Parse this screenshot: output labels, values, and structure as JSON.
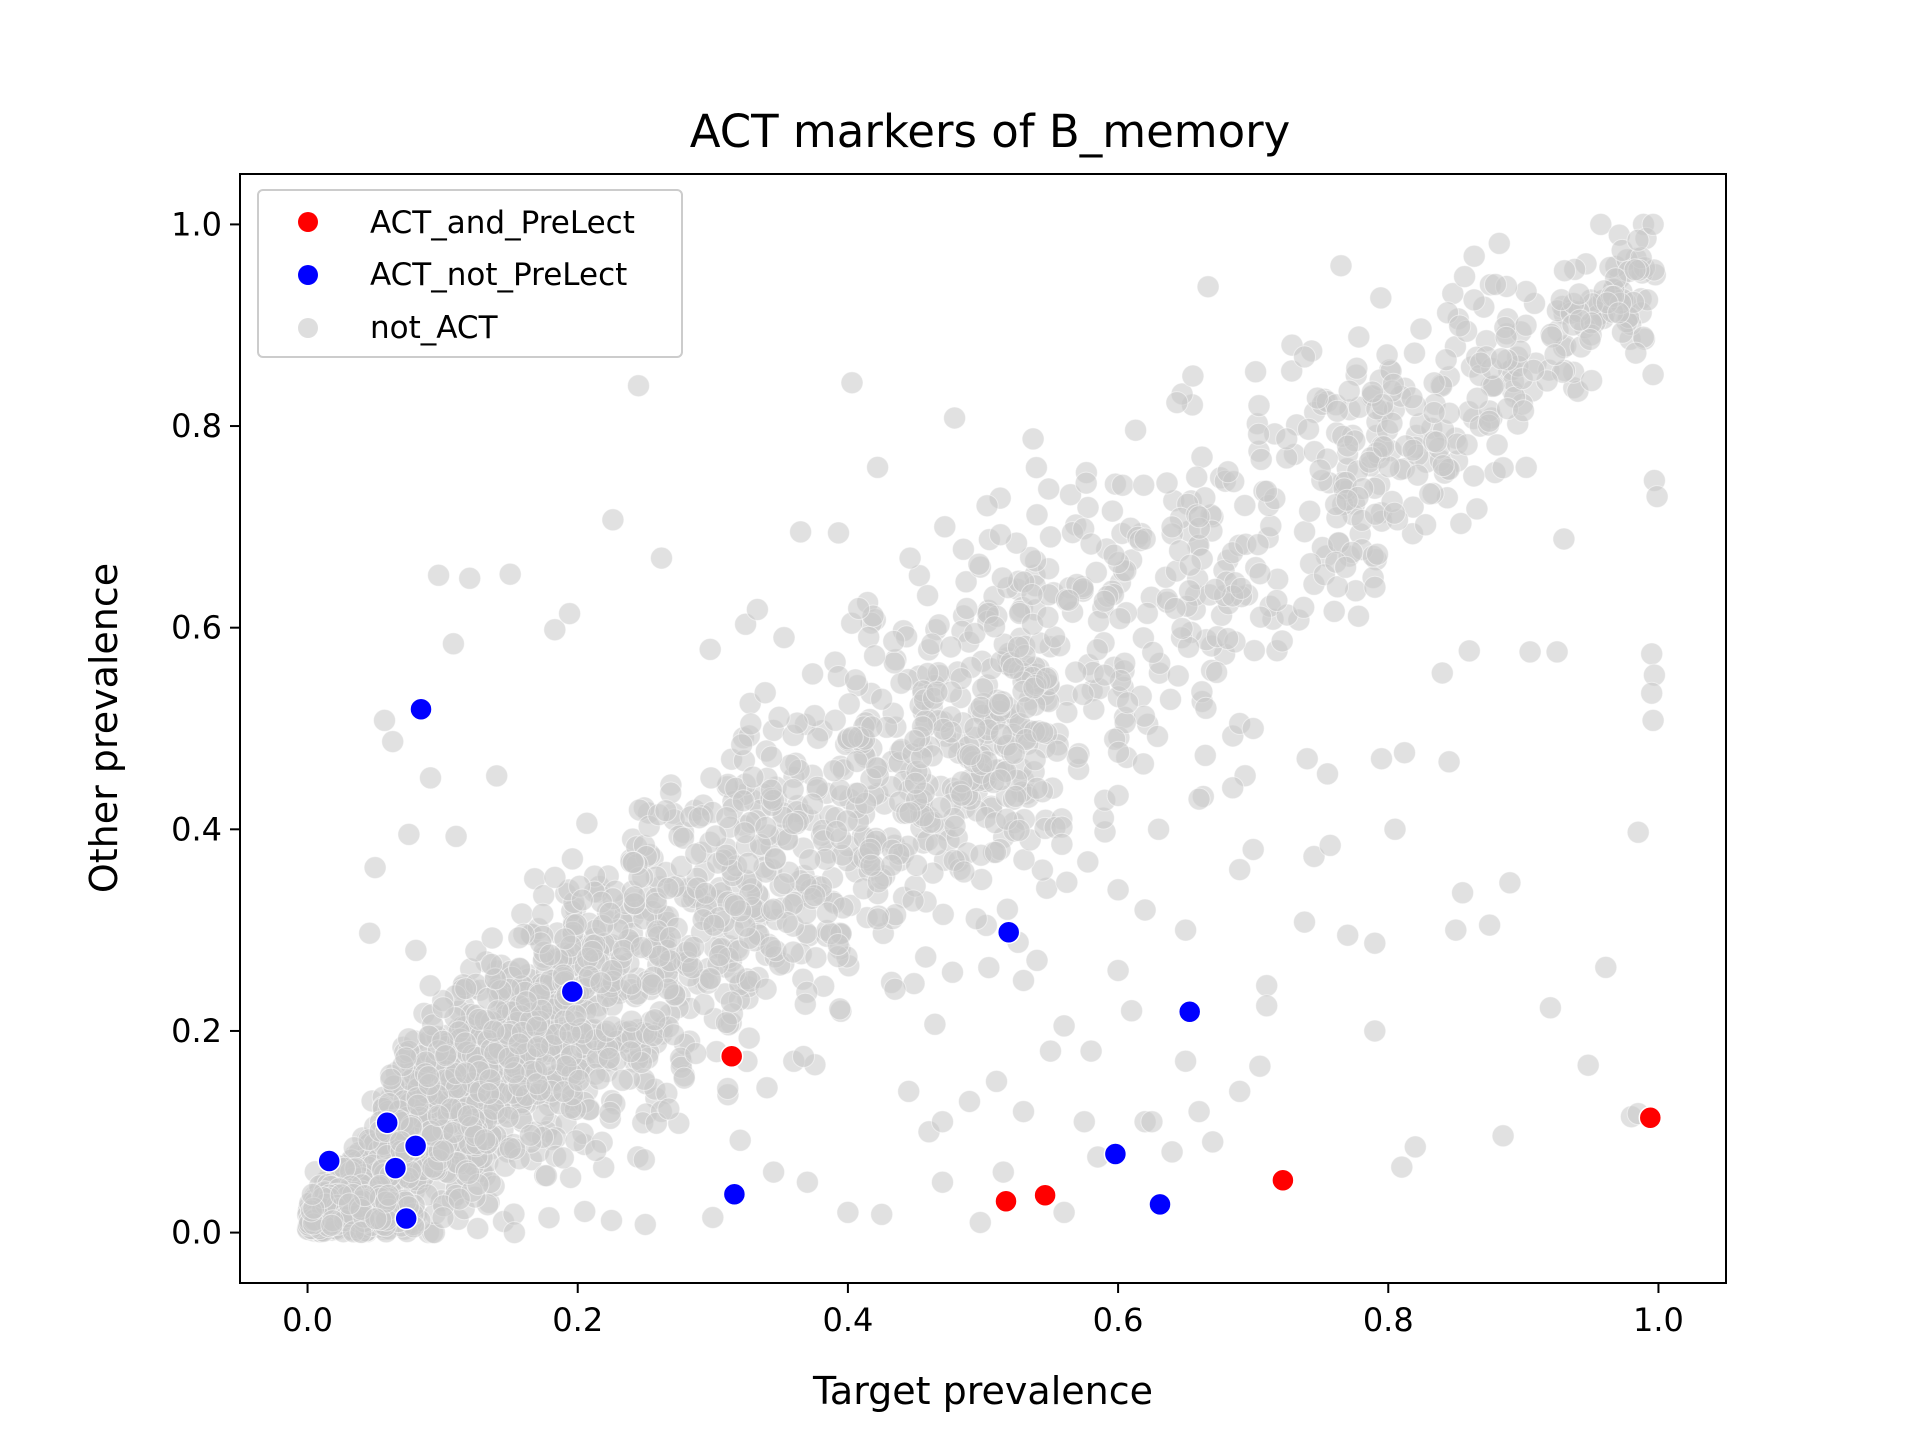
{
  "chart_data": {
    "type": "scatter",
    "title": "ACT markers of B_memory",
    "xlabel": "Target prevalence",
    "ylabel": "Other prevalence",
    "xlim": [
      -0.05,
      1.05
    ],
    "ylim": [
      -0.05,
      1.05
    ],
    "xticks": [
      0.0,
      0.2,
      0.4,
      0.6,
      0.8,
      1.0
    ],
    "yticks": [
      0.0,
      0.2,
      0.4,
      0.6,
      0.8,
      1.0
    ],
    "xtick_labels": [
      "0.0",
      "0.2",
      "0.4",
      "0.6",
      "0.8",
      "1.0"
    ],
    "ytick_labels": [
      "0.0",
      "0.2",
      "0.4",
      "0.6",
      "0.8",
      "1.0"
    ],
    "legend_position": "top-left",
    "series": [
      {
        "name": "ACT_and_PreLect",
        "color": "#ff0000",
        "points": [
          [
            0.314,
            0.175
          ],
          [
            0.994,
            0.114
          ],
          [
            0.722,
            0.052
          ],
          [
            0.546,
            0.037
          ],
          [
            0.517,
            0.031
          ]
        ]
      },
      {
        "name": "ACT_not_PreLect",
        "color": "#0000ff",
        "points": [
          [
            0.084,
            0.519
          ],
          [
            0.519,
            0.298
          ],
          [
            0.196,
            0.239
          ],
          [
            0.653,
            0.219
          ],
          [
            0.059,
            0.109
          ],
          [
            0.08,
            0.086
          ],
          [
            0.598,
            0.078
          ],
          [
            0.016,
            0.071
          ],
          [
            0.065,
            0.064
          ],
          [
            0.316,
            0.038
          ],
          [
            0.631,
            0.028
          ],
          [
            0.073,
            0.014
          ]
        ]
      },
      {
        "name": "not_ACT",
        "color": "#c8c8c8",
        "points": [
          [
            0.765,
            0.959
          ],
          [
            0.245,
            0.84
          ],
          [
            0.403,
            0.843
          ],
          [
            0.479,
            0.808
          ],
          [
            0.422,
            0.759
          ],
          [
            0.097,
            0.652
          ],
          [
            0.12,
            0.649
          ],
          [
            0.15,
            0.653
          ],
          [
            0.226,
            0.707
          ],
          [
            0.262,
            0.669
          ],
          [
            0.365,
            0.695
          ],
          [
            0.393,
            0.694
          ],
          [
            0.446,
            0.669
          ],
          [
            0.497,
            0.663
          ],
          [
            0.503,
            0.721
          ],
          [
            0.183,
            0.598
          ],
          [
            0.194,
            0.614
          ],
          [
            0.333,
            0.618
          ],
          [
            0.408,
            0.619
          ],
          [
            0.488,
            0.619
          ],
          [
            0.108,
            0.584
          ],
          [
            0.057,
            0.508
          ],
          [
            0.063,
            0.487
          ],
          [
            0.091,
            0.451
          ],
          [
            0.11,
            0.393
          ],
          [
            0.14,
            0.453
          ],
          [
            0.075,
            0.395
          ],
          [
            0.05,
            0.362
          ],
          [
            0.046,
            0.297
          ],
          [
            0.62,
            0.11
          ],
          [
            0.64,
            0.08
          ],
          [
            0.585,
            0.075
          ],
          [
            0.575,
            0.11
          ],
          [
            0.56,
            0.02
          ],
          [
            0.515,
            0.06
          ],
          [
            0.498,
            0.01
          ],
          [
            0.47,
            0.05
          ],
          [
            0.46,
            0.1
          ],
          [
            0.445,
            0.14
          ],
          [
            0.425,
            0.018
          ],
          [
            0.4,
            0.02
          ],
          [
            0.37,
            0.05
          ],
          [
            0.345,
            0.06
          ],
          [
            0.3,
            0.015
          ],
          [
            0.25,
            0.008
          ],
          [
            0.225,
            0.012
          ],
          [
            0.71,
            0.245
          ],
          [
            0.705,
            0.165
          ],
          [
            0.71,
            0.225
          ],
          [
            0.738,
            0.308
          ],
          [
            0.745,
            0.373
          ],
          [
            0.757,
            0.384
          ],
          [
            0.77,
            0.295
          ],
          [
            0.79,
            0.287
          ],
          [
            0.805,
            0.4
          ],
          [
            0.812,
            0.476
          ],
          [
            0.845,
            0.467
          ],
          [
            0.85,
            0.3
          ],
          [
            0.855,
            0.337
          ],
          [
            0.875,
            0.305
          ],
          [
            0.89,
            0.347
          ],
          [
            0.885,
            0.096
          ],
          [
            0.92,
            0.223
          ],
          [
            0.948,
            0.166
          ],
          [
            0.961,
            0.263
          ],
          [
            0.985,
            0.397
          ],
          [
            0.79,
            0.2
          ],
          [
            0.82,
            0.085
          ],
          [
            0.81,
            0.065
          ],
          [
            0.84,
            0.555
          ],
          [
            0.86,
            0.577
          ],
          [
            0.905,
            0.576
          ],
          [
            0.925,
            0.576
          ],
          [
            0.995,
            0.574
          ],
          [
            0.997,
            0.553
          ],
          [
            0.995,
            0.535
          ],
          [
            0.996,
            0.508
          ],
          [
            0.997,
            0.746
          ],
          [
            0.999,
            0.73
          ],
          [
            0.996,
            0.851
          ],
          [
            0.93,
            0.688
          ],
          [
            0.98,
            0.115
          ],
          [
            0.985,
            0.118
          ],
          [
            0.74,
            0.47
          ],
          [
            0.755,
            0.455
          ],
          [
            0.795,
            0.47
          ],
          [
            0.69,
            0.505
          ],
          [
            0.7,
            0.5
          ],
          [
            0.665,
            0.52
          ],
          [
            0.54,
            0.712
          ],
          [
            0.55,
            0.69
          ],
          [
            0.58,
            0.683
          ],
          [
            0.597,
            0.672
          ],
          [
            0.62,
            0.688
          ],
          [
            0.64,
            0.7
          ],
          [
            0.66,
            0.71
          ],
          [
            0.6,
            0.34
          ],
          [
            0.62,
            0.32
          ],
          [
            0.65,
            0.3
          ],
          [
            0.69,
            0.36
          ],
          [
            0.7,
            0.38
          ],
          [
            0.63,
            0.4
          ],
          [
            0.66,
            0.43
          ],
          [
            0.6,
            0.26
          ],
          [
            0.56,
            0.205
          ],
          [
            0.54,
            0.27
          ],
          [
            0.53,
            0.25
          ],
          [
            0.61,
            0.22
          ],
          [
            0.58,
            0.18
          ],
          [
            0.51,
            0.15
          ],
          [
            0.49,
            0.13
          ],
          [
            0.47,
            0.11
          ],
          [
            0.53,
            0.12
          ],
          [
            0.55,
            0.18
          ],
          [
            0.625,
            0.11
          ],
          [
            0.66,
            0.12
          ],
          [
            0.67,
            0.09
          ],
          [
            0.69,
            0.14
          ],
          [
            0.65,
            0.17
          ]
        ],
        "dense_trend": {
          "description": "Dense cloud of several thousand points along the diagonal",
          "approx_count": 2600
        }
      }
    ]
  }
}
